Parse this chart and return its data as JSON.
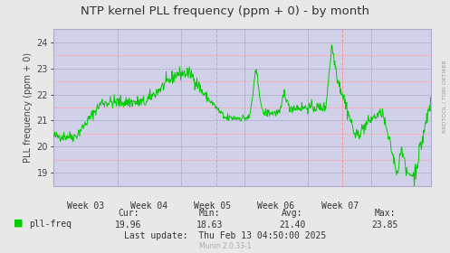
{
  "title": "NTP kernel PLL frequency (ppm + 0) - by month",
  "ylabel": "PLL frequency (ppm + 0)",
  "bg_color": "#e8e8e8",
  "plot_bg_color": "#d0d0e8",
  "line_color": "#00cc00",
  "grid_color_major": "#aaaacc",
  "grid_color_minor": "#ffaaaa",
  "ylim": [
    18.5,
    24.5
  ],
  "yticks": [
    19,
    20,
    21,
    22,
    23,
    24
  ],
  "week_labels": [
    "Week 03",
    "Week 04",
    "Week 05",
    "Week 06",
    "Week 07"
  ],
  "vline_color": "#ff8888",
  "vline_positions": [
    0.432,
    0.766
  ],
  "cur": "19.96",
  "min": "18.63",
  "avg": "21.40",
  "max": "23.85",
  "last_update": "Thu Feb 13 04:50:00 2025",
  "legend_label": "pll-freq",
  "watermark": "Munin 2.0.33-1",
  "rrdtool_label": "RRDTOOL / TOBI OETIKER",
  "title_fontsize": 9.5,
  "axis_fontsize": 7,
  "legend_fontsize": 7,
  "stats_fontsize": 7
}
